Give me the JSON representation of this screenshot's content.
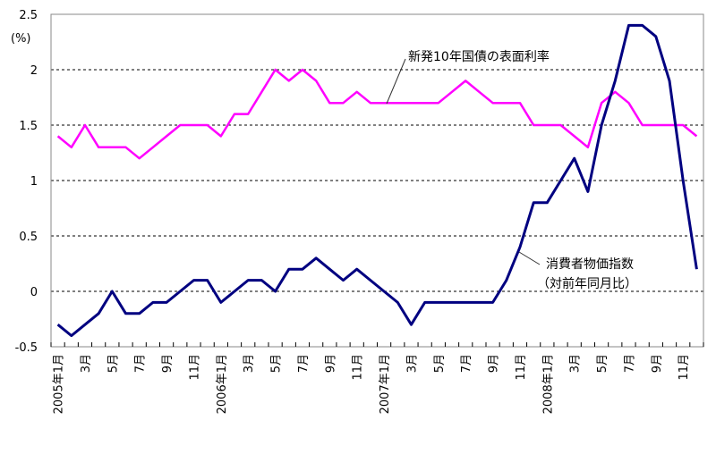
{
  "chart_data": {
    "type": "line",
    "unit_label": "(%)",
    "ylim": [
      -0.5,
      2.5
    ],
    "yticks": [
      "2.5",
      "2",
      "1.5",
      "1",
      "0.5",
      "0",
      "-0.5"
    ],
    "ytick_values": [
      2.5,
      2,
      1.5,
      1,
      0.5,
      0,
      -0.5
    ],
    "grid": "horizontal dashed",
    "x_labels": [
      "2005年1月",
      "3月",
      "5月",
      "7月",
      "9月",
      "11月",
      "2006年1月",
      "3月",
      "5月",
      "7月",
      "9月",
      "11月",
      "2007年1月",
      "3月",
      "5月",
      "7月",
      "9月",
      "11月",
      "2008年1月",
      "3月",
      "5月",
      "7月",
      "9月",
      "11月"
    ],
    "series": [
      {
        "name": "新発10年国債の表面利率",
        "color": "#ff00ff",
        "values": [
          1.4,
          1.3,
          1.5,
          1.3,
          1.3,
          1.3,
          1.2,
          1.3,
          1.4,
          1.5,
          1.5,
          1.5,
          1.4,
          1.6,
          1.6,
          1.8,
          2.0,
          1.9,
          2.0,
          1.9,
          1.7,
          1.7,
          1.8,
          1.7,
          1.7,
          1.7,
          1.7,
          1.7,
          1.7,
          1.8,
          1.9,
          1.8,
          1.7,
          1.7,
          1.7,
          1.5,
          1.5,
          1.5,
          1.4,
          1.3,
          1.7,
          1.8,
          1.7,
          1.5,
          1.5,
          1.5,
          1.5,
          1.4
        ]
      },
      {
        "name": "消費者物価指数",
        "name_line2": "（対前年同月比）",
        "color": "#000080",
        "values": [
          -0.3,
          -0.4,
          -0.3,
          -0.2,
          0.0,
          -0.2,
          -0.2,
          -0.1,
          -0.1,
          0.0,
          0.1,
          0.1,
          -0.1,
          0.0,
          0.1,
          0.1,
          0.0,
          0.2,
          0.2,
          0.3,
          0.2,
          0.1,
          0.2,
          0.1,
          0.0,
          -0.1,
          -0.3,
          -0.1,
          -0.1,
          -0.1,
          -0.1,
          -0.1,
          -0.1,
          0.1,
          0.4,
          0.8,
          0.8,
          1.0,
          1.2,
          0.9,
          1.5,
          1.9,
          2.4,
          2.4,
          2.3,
          1.9,
          1.0,
          0.2
        ]
      }
    ]
  }
}
